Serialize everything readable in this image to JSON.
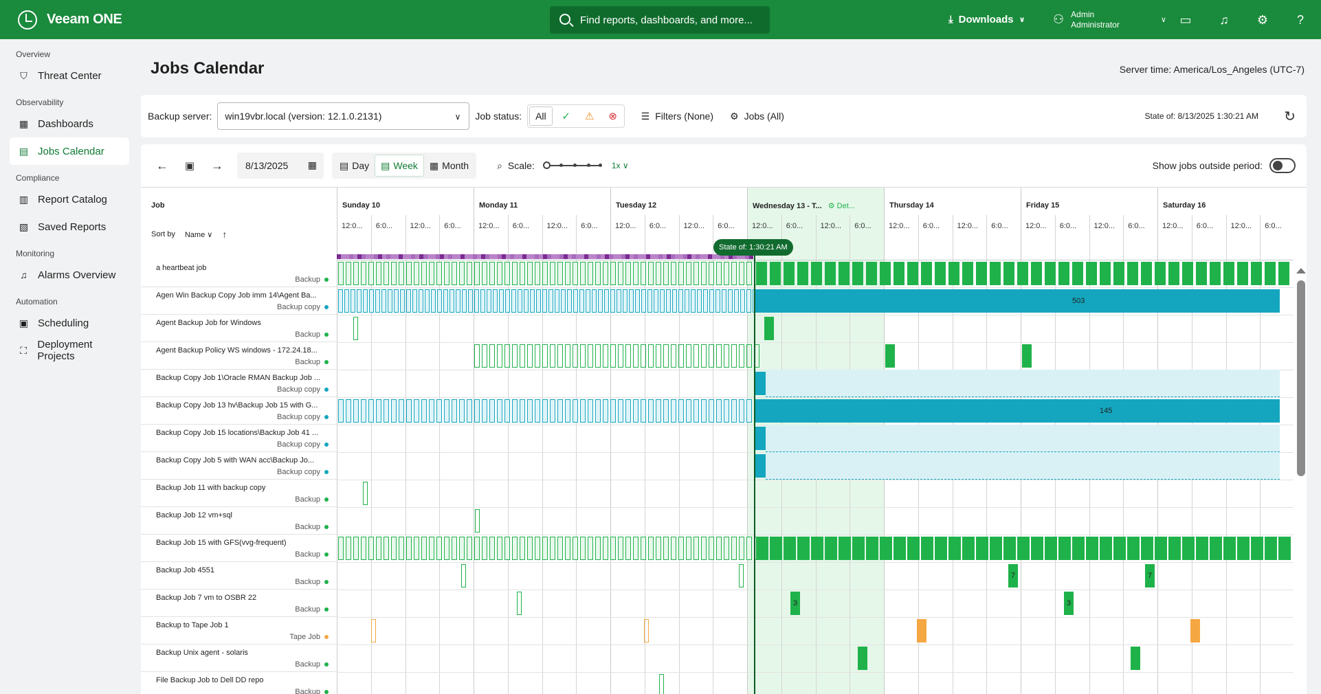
{
  "app": {
    "name": "Veeam ONE"
  },
  "header": {
    "search_placeholder": "Find reports, dashboards, and more...",
    "downloads_label": "Downloads",
    "user_name": "Admin",
    "user_role": "Administrator"
  },
  "sidebar": {
    "sections": [
      {
        "title": "Overview",
        "items": [
          {
            "label": "Threat Center",
            "icon": "shield-icon"
          }
        ]
      },
      {
        "title": "Observability",
        "items": [
          {
            "label": "Dashboards",
            "icon": "dashboard-icon"
          },
          {
            "label": "Jobs Calendar",
            "icon": "calendar-icon",
            "active": true
          }
        ]
      },
      {
        "title": "Compliance",
        "items": [
          {
            "label": "Report Catalog",
            "icon": "report-icon"
          },
          {
            "label": "Saved Reports",
            "icon": "saved-report-icon"
          }
        ]
      },
      {
        "title": "Monitoring",
        "items": [
          {
            "label": "Alarms Overview",
            "icon": "bell-icon"
          }
        ]
      },
      {
        "title": "Automation",
        "items": [
          {
            "label": "Scheduling",
            "icon": "schedule-icon"
          },
          {
            "label": "Deployment Projects",
            "icon": "deploy-icon"
          }
        ]
      }
    ]
  },
  "page": {
    "title": "Jobs Calendar",
    "server_time": "Server time: America/Los_Angeles (UTC-7)"
  },
  "filters": {
    "backup_server_label": "Backup server:",
    "backup_server_value": "win19vbr.local (version: 12.1.0.2131)",
    "job_status_label": "Job status:",
    "job_status_all": "All",
    "filters_label": "Filters (None)",
    "jobs_label": "Jobs (All)",
    "state_of": "State of: 8/13/2025 1:30:21 AM"
  },
  "toolbar": {
    "date": "8/13/2025",
    "views": [
      "Day",
      "Week",
      "Month"
    ],
    "active_view": "Week",
    "scale_label": "Scale:",
    "scale_value": "1x",
    "show_outside_label": "Show jobs outside period:"
  },
  "calendar": {
    "job_header": "Job",
    "sort_by_label": "Sort by",
    "sort_field": "Name",
    "now_label": "State of: 1:30:21 AM",
    "days": [
      {
        "name": "Sunday 10"
      },
      {
        "name": "Monday 11"
      },
      {
        "name": "Tuesday 12"
      },
      {
        "name": "Wednesday 13 - T...",
        "extra": "Det...",
        "today": true
      },
      {
        "name": "Thursday 14"
      },
      {
        "name": "Friday 15"
      },
      {
        "name": "Saturday 16"
      }
    ],
    "hour_labels": [
      "12:0...",
      "6:0...",
      "12:0...",
      "6:0..."
    ],
    "jobs": [
      {
        "name": "a heartbeat job",
        "type": "Backup",
        "type_color": "#1fb24a"
      },
      {
        "name": "Agen Win Backup Copy Job imm 14\\Agent Ba...",
        "type": "Backup copy",
        "type_color": "#14a6bf",
        "count": "503"
      },
      {
        "name": "Agent Backup Job for Windows",
        "type": "Backup",
        "type_color": "#1fb24a"
      },
      {
        "name": "Agent Backup Policy WS windows - 172.24.18...",
        "type": "Backup",
        "type_color": "#1fb24a"
      },
      {
        "name": "Backup Copy Job 1\\Oracle RMAN Backup Job ...",
        "type": "Backup copy",
        "type_color": "#14a6bf"
      },
      {
        "name": "Backup Copy Job 13 hv\\Backup Job 15 with G...",
        "type": "Backup copy",
        "type_color": "#14a6bf",
        "count": "145"
      },
      {
        "name": "Backup Copy Job 15 locations\\Backup Job 41 ...",
        "type": "Backup copy",
        "type_color": "#14a6bf"
      },
      {
        "name": "Backup Copy Job 5 with WAN acc\\Backup Jo...",
        "type": "Backup copy",
        "type_color": "#14a6bf"
      },
      {
        "name": "Backup Job 11 with backup copy",
        "type": "Backup",
        "type_color": "#1fb24a"
      },
      {
        "name": "Backup Job 12 vm+sql",
        "type": "Backup",
        "type_color": "#1fb24a"
      },
      {
        "name": "Backup Job 15 with GFS(vvg-frequent)",
        "type": "Backup",
        "type_color": "#1fb24a"
      },
      {
        "name": "Backup Job 4551",
        "type": "Backup",
        "type_color": "#1fb24a",
        "count": "7"
      },
      {
        "name": "Backup Job 7 vm to OSBR 22",
        "type": "Backup",
        "type_color": "#1fb24a",
        "count": "3"
      },
      {
        "name": "Backup to Tape Job 1",
        "type": "Tape Job",
        "type_color": "#f5a742"
      },
      {
        "name": "Backup Unix agent - solaris",
        "type": "Backup",
        "type_color": "#1fb24a"
      },
      {
        "name": "File Backup Job to Dell DD repo",
        "type": "Backup",
        "type_color": "#1fb24a"
      }
    ]
  },
  "colors": {
    "brand": "#1a8a3c",
    "success": "#1fb24a",
    "copy": "#14a6bf",
    "tape": "#f5a742",
    "today_bg": "#e5f7e9",
    "purple": "#8e3aa6"
  }
}
